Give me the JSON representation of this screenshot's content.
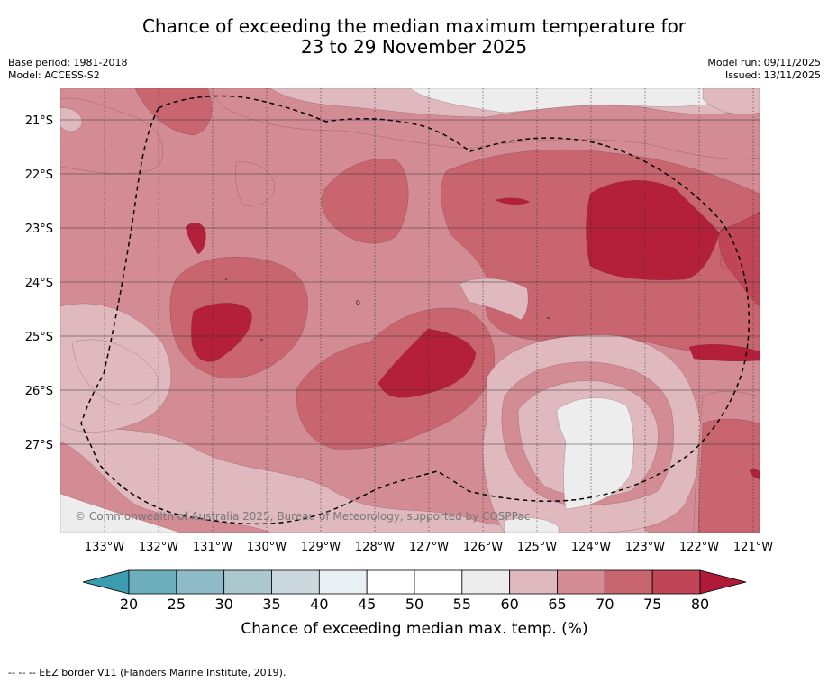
{
  "title": "Chance of exceeding the median maximum temperature for\n23 to 29 November 2025",
  "base_period": "Base period: 1981-2018",
  "model": "Model: ACCESS-S2",
  "model_run": "Model run: 09/11/2025",
  "issued": "Issued: 13/11/2025",
  "copyright": "© Commonwealth of Australia 2025, Bureau of Meteorology, supported by COSPPac",
  "footnote": "-- -- -- EEZ border V11 (Flanders Marine Institute, 2019).",
  "lat_labels": [
    "21°S",
    "22°S",
    "23°S",
    "24°S",
    "25°S",
    "26°S",
    "27°S"
  ],
  "lon_labels": [
    "133°W",
    "132°W",
    "131°W",
    "130°W",
    "129°W",
    "128°W",
    "127°W",
    "126°W",
    "125°W",
    "124°W",
    "123°W",
    "122°W",
    "121°W"
  ],
  "colorbar": {
    "label": "Chance of exceeding median max. temp. (%)",
    "ticks": [
      "20",
      "25",
      "30",
      "35",
      "40",
      "45",
      "50",
      "55",
      "60",
      "65",
      "70",
      "75",
      "80"
    ],
    "under_color": "#3b9cae",
    "over_color": "#ae1a38",
    "colors": [
      "#6daebd",
      "#8ebbc7",
      "#aac8ce",
      "#cbd9de",
      "#e9f0f3",
      "#ffffff",
      "#ffffff",
      "#eeeded",
      "#e0b9bf",
      "#d48c94",
      "#c8656f",
      "#c04556"
    ]
  },
  "palette": {
    "p60": "#eeeded",
    "p65": "#e0b9bf",
    "p70": "#d48c94",
    "p75": "#c8656f",
    "p80": "#c04556",
    "p85": "#b41f3a"
  }
}
